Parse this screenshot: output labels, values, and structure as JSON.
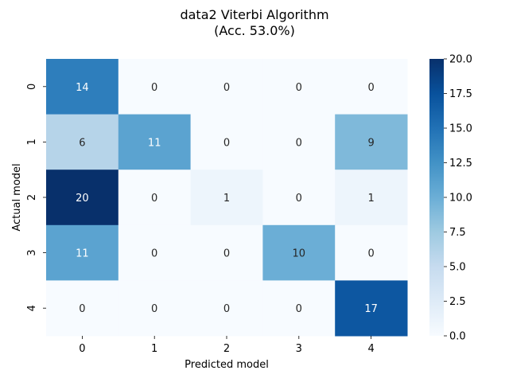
{
  "chart_data": {
    "type": "heatmap",
    "title": "data2 Viterbi Algorithm",
    "subtitle": "(Acc. 53.0%)",
    "xlabel": "Predicted model",
    "ylabel": "Actual model",
    "x_categories": [
      "0",
      "1",
      "2",
      "3",
      "4"
    ],
    "y_categories": [
      "0",
      "1",
      "2",
      "3",
      "4"
    ],
    "values": [
      [
        14,
        0,
        0,
        0,
        0
      ],
      [
        6,
        11,
        0,
        0,
        9
      ],
      [
        20,
        0,
        1,
        0,
        1
      ],
      [
        11,
        0,
        0,
        10,
        0
      ],
      [
        0,
        0,
        0,
        0,
        17
      ]
    ],
    "colorbar": {
      "min": 0,
      "max": 20,
      "ticks": [
        "0.0",
        "2.5",
        "5.0",
        "7.5",
        "10.0",
        "12.5",
        "15.0",
        "17.5",
        "20.0"
      ],
      "colormap": "Blues"
    }
  }
}
